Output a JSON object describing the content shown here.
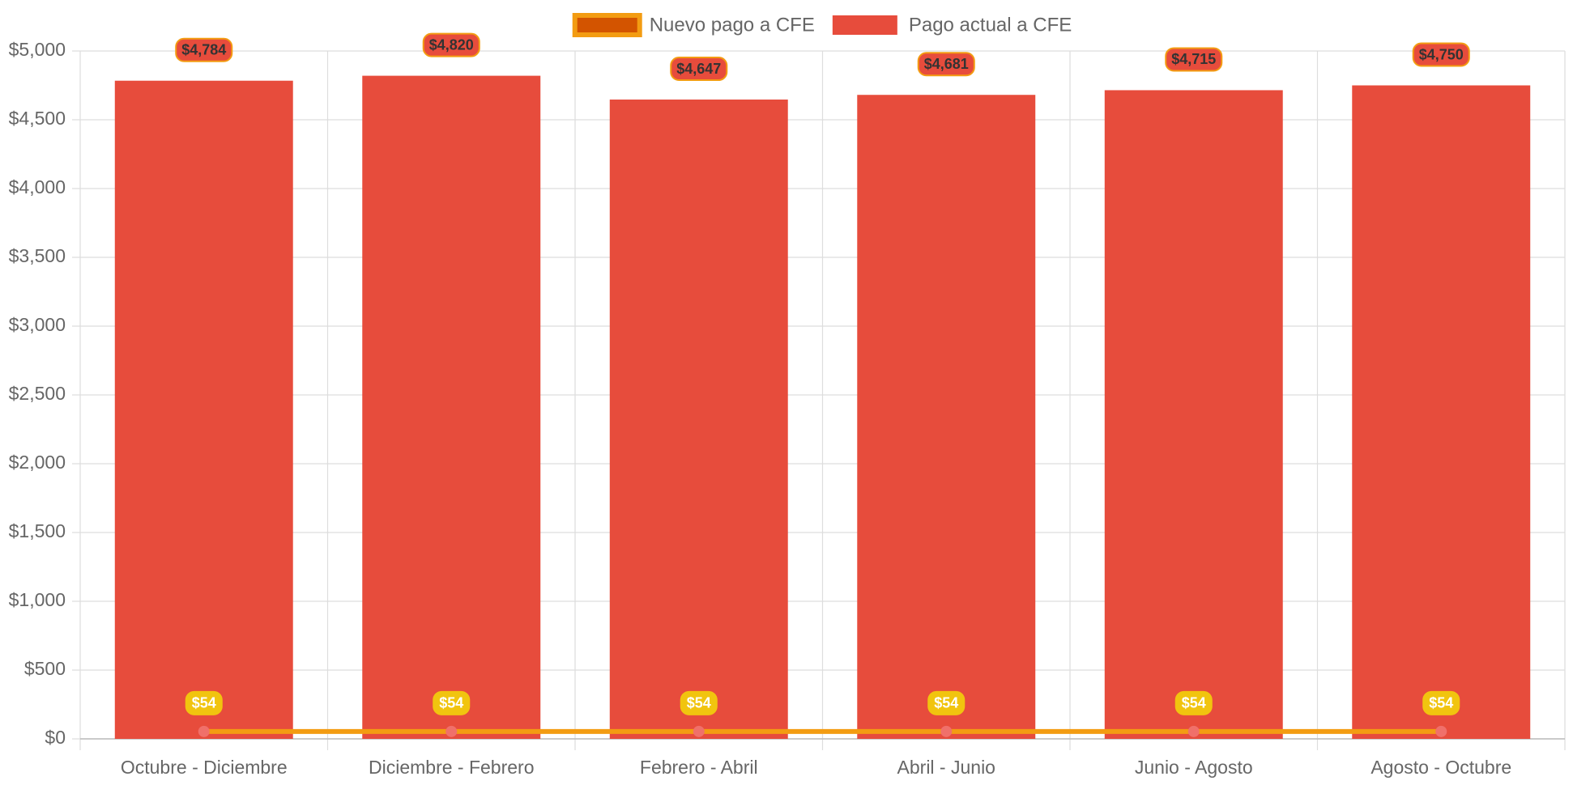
{
  "chart_data": {
    "type": "bar",
    "categories": [
      "Octubre - Diciembre",
      "Diciembre - Febrero",
      "Febrero - Abril",
      "Abril - Junio",
      "Junio - Agosto",
      "Agosto - Octubre"
    ],
    "series": [
      {
        "name": "Nuevo pago a CFE",
        "type": "line",
        "color": "#f39c12",
        "fill": "#d35400",
        "point_color": "#f0706a",
        "label_color": "#f1c40f",
        "values": [
          54,
          54,
          54,
          54,
          54,
          54
        ],
        "value_labels": [
          "$54",
          "$54",
          "$54",
          "$54",
          "$54",
          "$54"
        ]
      },
      {
        "name": "Pago actual a CFE",
        "type": "bar",
        "color": "#e74c3c",
        "values": [
          4784,
          4820,
          4647,
          4681,
          4715,
          4750
        ],
        "value_labels": [
          "$4,784",
          "$4,820",
          "$4,647",
          "$4,681",
          "$4,715",
          "$4,750"
        ]
      }
    ],
    "ylim": [
      0,
      5000
    ],
    "yticks": [
      {
        "value": 0,
        "label": "$0"
      },
      {
        "value": 500,
        "label": "$500"
      },
      {
        "value": 1000,
        "label": "$1,000"
      },
      {
        "value": 1500,
        "label": "$1,500"
      },
      {
        "value": 2000,
        "label": "$2,000"
      },
      {
        "value": 2500,
        "label": "$2,500"
      },
      {
        "value": 3000,
        "label": "$3,000"
      },
      {
        "value": 3500,
        "label": "$3,500"
      },
      {
        "value": 4000,
        "label": "$4,000"
      },
      {
        "value": 4500,
        "label": "$4,500"
      },
      {
        "value": 5000,
        "label": "$5,000"
      }
    ],
    "grid": true
  }
}
